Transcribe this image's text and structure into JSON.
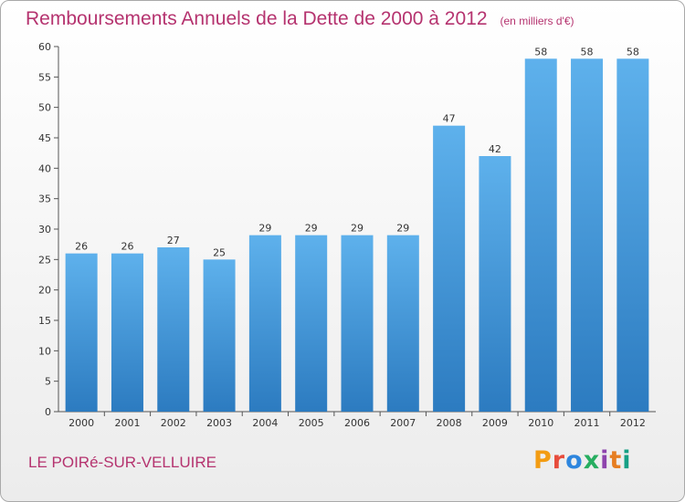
{
  "chart_data": {
    "type": "bar",
    "title": "Remboursements Annuels de la Dette de 2000 à 2012",
    "subtitle": "(en milliers d'€)",
    "categories": [
      "2000",
      "2001",
      "2002",
      "2003",
      "2004",
      "2005",
      "2006",
      "2007",
      "2008",
      "2009",
      "2010",
      "2011",
      "2012"
    ],
    "values": [
      26,
      26,
      27,
      25,
      29,
      29,
      29,
      29,
      47,
      42,
      58,
      58,
      58
    ],
    "ylim": [
      0,
      60
    ],
    "yticks": [
      0,
      5,
      10,
      15,
      20,
      25,
      30,
      35,
      40,
      45,
      50,
      55,
      60
    ],
    "grid": false,
    "data_labels": true,
    "bar_color": "#4a9fe0"
  },
  "footer": {
    "commune": "LE POIRé-SUR-VELLUIRE",
    "brand": "Proxiti"
  },
  "brand_colors": [
    "#f39c12",
    "#e74c3c",
    "#2e86de",
    "#27ae60",
    "#8e44ad",
    "#e67e22",
    "#16a085"
  ]
}
